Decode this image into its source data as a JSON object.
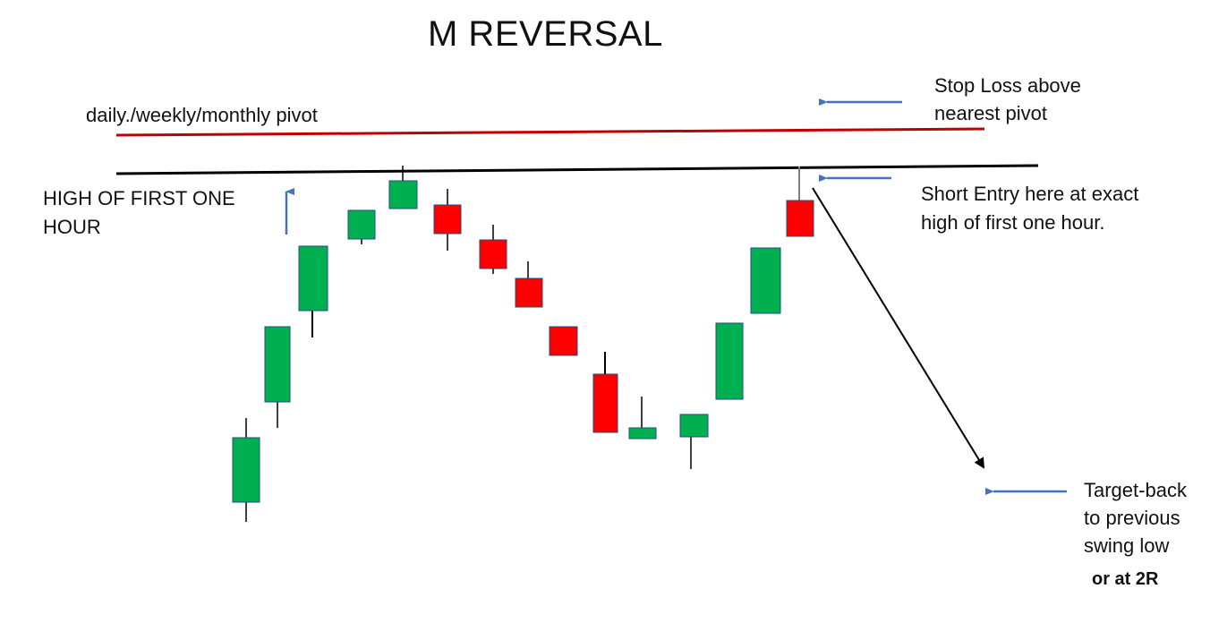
{
  "title": "M REVERSAL",
  "labels": {
    "pivot": "daily./weekly/monthly pivot",
    "high_of_first_hour": [
      "HIGH OF FIRST ONE",
      "HOUR"
    ],
    "stop_loss": [
      "Stop Loss above",
      "nearest pivot"
    ],
    "short_entry": [
      "Short Entry here at exact",
      "high of first one hour."
    ],
    "target": [
      "Target-back",
      "to previous",
      "swing low"
    ],
    "target_alt": "or at 2R"
  },
  "colors": {
    "bullish": "#00b050",
    "bearish": "#ff0000",
    "pivot_line": "#c00000",
    "high_line": "#000000",
    "pointer_arrow": "#4472c4",
    "move_arrow": "#000000"
  },
  "icons": {
    "pointer": "arrow-icon",
    "target_move": "down-arrow-icon"
  }
}
